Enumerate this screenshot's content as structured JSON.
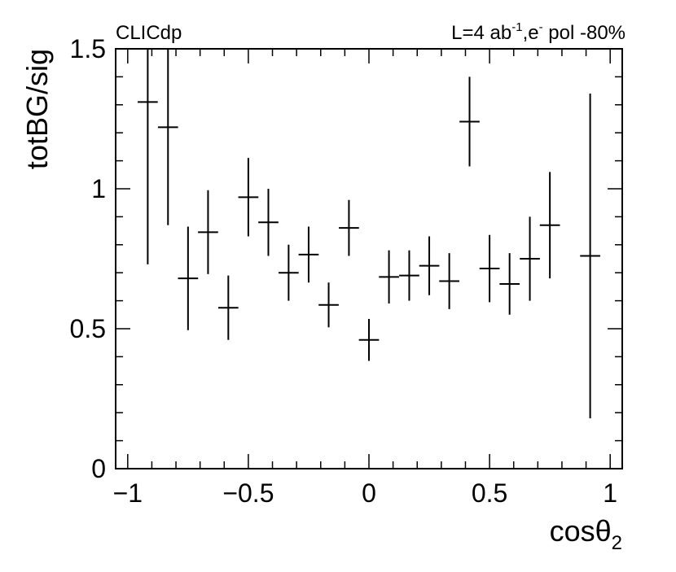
{
  "chart_data": {
    "type": "scatter",
    "header_left": "CLICdp",
    "header_right": {
      "base": "L=4 ab",
      "sup1": "-1",
      "mid": ",e",
      "sup2": "-",
      "tail": " pol -80%"
    },
    "xlabel": {
      "base": "cosθ",
      "sub": "2"
    },
    "ylabel": "totBG/sig",
    "xlim": [
      -1.05,
      1.05
    ],
    "ylim": [
      0,
      1.5
    ],
    "xticks": [
      -1,
      -0.5,
      0,
      0.5,
      1
    ],
    "xtick_labels": [
      "−1",
      "−0.5",
      "0",
      "0.5",
      "1"
    ],
    "yticks": [
      0,
      0.5,
      1,
      1.5
    ],
    "ytick_labels": [
      "0",
      "0.5",
      "1",
      "1.5"
    ],
    "bin_half_width": 0.04167,
    "points": [
      {
        "x": -0.917,
        "y": 1.31,
        "err": 0.58
      },
      {
        "x": -0.833,
        "y": 1.22,
        "err": 0.35
      },
      {
        "x": -0.75,
        "y": 0.68,
        "err": 0.185
      },
      {
        "x": -0.667,
        "y": 0.845,
        "err": 0.15
      },
      {
        "x": -0.583,
        "y": 0.575,
        "err": 0.115
      },
      {
        "x": -0.5,
        "y": 0.97,
        "err": 0.14
      },
      {
        "x": -0.417,
        "y": 0.88,
        "err": 0.12
      },
      {
        "x": -0.333,
        "y": 0.7,
        "err": 0.1
      },
      {
        "x": -0.25,
        "y": 0.765,
        "err": 0.1
      },
      {
        "x": -0.167,
        "y": 0.585,
        "err": 0.08
      },
      {
        "x": -0.083,
        "y": 0.86,
        "err": 0.1
      },
      {
        "x": 0.0,
        "y": 0.46,
        "err": 0.075
      },
      {
        "x": 0.083,
        "y": 0.685,
        "err": 0.095
      },
      {
        "x": 0.167,
        "y": 0.69,
        "err": 0.09
      },
      {
        "x": 0.25,
        "y": 0.725,
        "err": 0.105
      },
      {
        "x": 0.333,
        "y": 0.67,
        "err": 0.1
      },
      {
        "x": 0.417,
        "y": 1.24,
        "err": 0.16
      },
      {
        "x": 0.5,
        "y": 0.715,
        "err": 0.12
      },
      {
        "x": 0.583,
        "y": 0.66,
        "err": 0.11
      },
      {
        "x": 0.667,
        "y": 0.75,
        "err": 0.15
      },
      {
        "x": 0.75,
        "y": 0.87,
        "err": 0.19
      },
      {
        "x": 0.917,
        "y": 0.76,
        "err": 0.58
      }
    ],
    "color": "#000000",
    "grid": false
  }
}
